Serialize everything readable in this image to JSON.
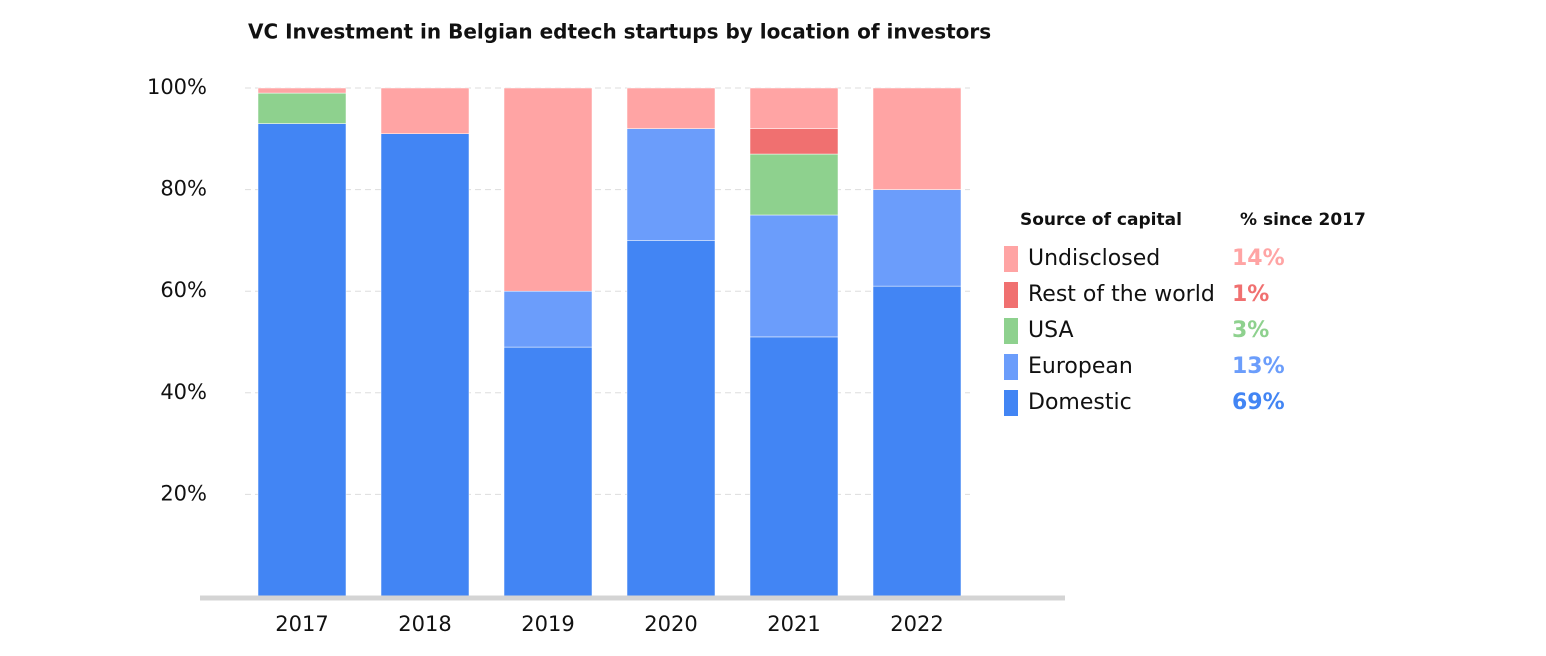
{
  "chart_data": {
    "type": "stacked_bar",
    "title": "VC Investment in Belgian edtech startups by location of investors",
    "categories": [
      "2017",
      "2018",
      "2019",
      "2020",
      "2021",
      "2022"
    ],
    "series": [
      {
        "name": "Domestic",
        "color": "#4285f4",
        "values": [
          93,
          91,
          49,
          70,
          51,
          61
        ],
        "total": 69,
        "total_label": "69%"
      },
      {
        "name": "European",
        "color": "#6b9dfb",
        "values": [
          0,
          0,
          11,
          22,
          24,
          19
        ],
        "total": 13,
        "total_label": "13%"
      },
      {
        "name": "USA",
        "color": "#8ed18e",
        "values": [
          6,
          0,
          0,
          0,
          12,
          0
        ],
        "total": 3,
        "total_label": "3%"
      },
      {
        "name": "Rest of the world",
        "color": "#f07070",
        "values": [
          0,
          0,
          0,
          0,
          5,
          0
        ],
        "total": 1,
        "total_label": "1%"
      },
      {
        "name": "Undisclosed",
        "color": "#ffa4a4",
        "values": [
          1,
          9,
          40,
          8,
          8,
          20
        ],
        "total": 14,
        "total_label": "14%"
      }
    ],
    "legend_title": "Source of capital",
    "legend_value_title": "% since 2017",
    "ylim": [
      0,
      100
    ],
    "yticks": [
      {
        "value": 20,
        "label": "20%"
      },
      {
        "value": 40,
        "label": "40%"
      },
      {
        "value": 60,
        "label": "60%"
      },
      {
        "value": 80,
        "label": "80%"
      },
      {
        "value": 100,
        "label": "100%"
      }
    ],
    "grid": true
  }
}
